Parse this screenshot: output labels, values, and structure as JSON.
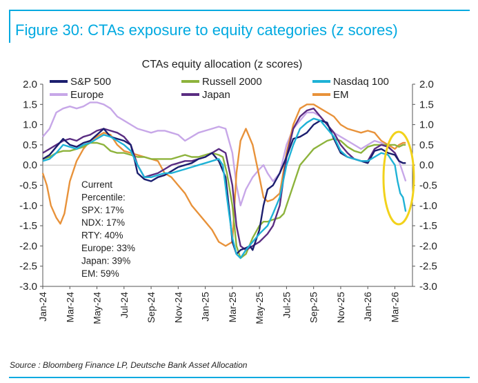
{
  "figure": {
    "title": "Figure 30: CTAs exposure to equity categories (z scores)",
    "source": "Source : Bloomberg Finance LP, Deutsche Bank Asset Allocation",
    "accent_color": "#00a9e0"
  },
  "chart_data": {
    "type": "line",
    "title": "CTAs equity allocation (z scores)",
    "xlabel": "",
    "ylabel": "",
    "ylim": [
      -3.0,
      2.0
    ],
    "y_ticks": [
      "2.0",
      "1.5",
      "1.0",
      "0.5",
      "0.0",
      "-0.5",
      "-1.0",
      "-1.5",
      "-2.0",
      "-2.5",
      "-3.0"
    ],
    "y_tick_values": [
      2.0,
      1.5,
      1.0,
      0.5,
      0.0,
      -0.5,
      -1.0,
      -1.5,
      -2.0,
      -2.5,
      -3.0
    ],
    "x_range": [
      0,
      27.3
    ],
    "x_tick_labels": [
      "Jan-24",
      "Mar-24",
      "May-24",
      "Jul-24",
      "Sep-24",
      "Nov-24",
      "Jan-25",
      "Mar-25",
      "May-25",
      "Jul-25",
      "Sep-25",
      "Nov-25",
      "Jan-26",
      "Mar-26"
    ],
    "x_tick_values": [
      0,
      2,
      4,
      6,
      8,
      10,
      12,
      14,
      16,
      18,
      20,
      22,
      24,
      26
    ],
    "grid": false,
    "legend": [
      "S&P 500",
      "Russell 2000",
      "Nasdaq 100",
      "Europe",
      "Japan",
      "EM"
    ],
    "annotation": {
      "lines": [
        "Current",
        "Percentile:",
        "SPX: 17%",
        "NDX: 17%",
        "RTY: 40%",
        "Europe: 33%",
        "Japan: 39%",
        "EM: 59%"
      ],
      "highlight": "circle around latest readings",
      "highlight_color": "#f2d21b"
    },
    "series": [
      {
        "name": "S&P 500",
        "color": "#1b1e6e",
        "x": [
          0,
          0.5,
          1,
          1.5,
          2,
          2.5,
          3,
          3.5,
          4,
          4.5,
          5,
          5.5,
          6,
          6.5,
          6.8,
          7,
          7.5,
          8,
          8.5,
          9,
          9.5,
          10,
          10.5,
          11,
          11.5,
          12,
          12.5,
          13,
          13.5,
          13.8,
          14,
          14.3,
          14.6,
          15,
          15.3,
          15.5,
          16,
          16.3,
          16.6,
          17,
          17.5,
          18,
          18.5,
          19,
          19.5,
          20,
          20.5,
          21,
          21.5,
          22,
          22.5,
          23,
          23.5,
          24,
          24.5,
          25,
          25.5,
          26,
          26.3,
          26.6,
          26.8
        ],
        "y": [
          0.15,
          0.25,
          0.45,
          0.65,
          0.5,
          0.45,
          0.55,
          0.6,
          0.75,
          0.9,
          0.7,
          0.65,
          0.6,
          0.5,
          0.1,
          -0.2,
          -0.35,
          -0.4,
          -0.3,
          -0.25,
          -0.15,
          -0.05,
          0.0,
          0.05,
          0.15,
          0.2,
          0.3,
          0.1,
          -0.3,
          -1.2,
          -1.9,
          -2.2,
          -2.1,
          -2.05,
          -2.0,
          -2.1,
          -1.6,
          -1.0,
          -0.6,
          -0.5,
          -0.2,
          0.2,
          0.65,
          0.7,
          0.8,
          1.0,
          1.1,
          1.05,
          0.65,
          0.3,
          0.2,
          0.15,
          0.1,
          0.05,
          0.35,
          0.4,
          0.3,
          0.25,
          0.1,
          0.05,
          0.05
        ]
      },
      {
        "name": "Russell 2000",
        "color": "#8db33c",
        "x": [
          0,
          0.5,
          1,
          1.5,
          2,
          2.5,
          3,
          3.5,
          4,
          4.5,
          5,
          5.5,
          6,
          6.5,
          7,
          7.5,
          8,
          8.5,
          9,
          9.5,
          10,
          10.5,
          11,
          11.5,
          12,
          12.5,
          13,
          13.3,
          13.6,
          14,
          14.3,
          14.6,
          15,
          15.5,
          16,
          16.3,
          16.6,
          17,
          17.5,
          17.8,
          18,
          18.5,
          19,
          19.5,
          20,
          20.5,
          21,
          21.5,
          22,
          22.5,
          23,
          23.5,
          24,
          24.5,
          25,
          25.5,
          26,
          26.3,
          26.6,
          26.8
        ],
        "y": [
          0.15,
          0.2,
          0.3,
          0.35,
          0.35,
          0.4,
          0.45,
          0.55,
          0.55,
          0.5,
          0.35,
          0.3,
          0.3,
          0.25,
          0.2,
          0.2,
          0.15,
          0.15,
          0.15,
          0.15,
          0.2,
          0.25,
          0.2,
          0.2,
          0.25,
          0.3,
          0.25,
          0.2,
          -0.2,
          -1.0,
          -2.0,
          -2.3,
          -2.2,
          -1.8,
          -1.5,
          -1.4,
          -1.4,
          -1.35,
          -1.3,
          -1.2,
          -1.0,
          -0.5,
          0.0,
          0.2,
          0.4,
          0.5,
          0.6,
          0.65,
          0.6,
          0.45,
          0.35,
          0.3,
          0.45,
          0.5,
          0.5,
          0.5,
          0.5,
          0.45,
          0.5,
          0.5
        ]
      },
      {
        "name": "Nasdaq 100",
        "color": "#1fb2d6",
        "x": [
          0,
          0.5,
          1,
          1.5,
          2,
          2.5,
          3,
          3.5,
          4,
          4.5,
          5,
          5.5,
          6,
          6.5,
          7,
          7.5,
          8,
          8.5,
          9,
          9.5,
          10,
          10.5,
          11,
          11.5,
          12,
          12.5,
          13,
          13.3,
          13.6,
          14,
          14.3,
          14.6,
          15,
          15.5,
          16,
          16.3,
          16.6,
          17,
          17.5,
          18,
          18.5,
          19,
          19.5,
          20,
          20.5,
          21,
          21.5,
          22,
          22.5,
          23,
          23.5,
          24,
          24.5,
          25,
          25.5,
          25.8,
          26,
          26.2,
          26.4,
          26.6,
          26.8
        ],
        "y": [
          0.1,
          0.15,
          0.3,
          0.5,
          0.45,
          0.4,
          0.5,
          0.55,
          0.65,
          0.75,
          0.7,
          0.6,
          0.5,
          0.35,
          0.0,
          -0.3,
          -0.3,
          -0.25,
          -0.2,
          -0.2,
          -0.15,
          -0.1,
          -0.05,
          0.0,
          0.05,
          0.1,
          0.15,
          0.0,
          -0.8,
          -1.8,
          -2.2,
          -2.3,
          -2.1,
          -1.9,
          -1.7,
          -1.6,
          -1.5,
          -1.2,
          -0.8,
          0.0,
          0.5,
          0.9,
          1.05,
          1.15,
          1.1,
          0.9,
          0.7,
          0.35,
          0.2,
          0.15,
          0.1,
          0.1,
          0.2,
          0.3,
          0.25,
          0.1,
          0.0,
          -0.4,
          -0.7,
          -0.8,
          -1.15
        ]
      },
      {
        "name": "Europe",
        "color": "#c7a7e8",
        "x": [
          0,
          0.5,
          1,
          1.5,
          2,
          2.5,
          3,
          3.5,
          4,
          4.5,
          5,
          5.5,
          6,
          6.5,
          7,
          7.5,
          8,
          8.5,
          9,
          9.5,
          10,
          10.5,
          11,
          11.5,
          12,
          12.5,
          13,
          13.5,
          14,
          14.3,
          14.6,
          15,
          15.5,
          16,
          16.3,
          16.6,
          17,
          17.5,
          18,
          18.5,
          19,
          19.5,
          20,
          20.5,
          21,
          21.5,
          22,
          22.5,
          23,
          23.5,
          24,
          24.5,
          25,
          25.5,
          26,
          26.3,
          26.6,
          26.8
        ],
        "y": [
          0.7,
          0.9,
          1.3,
          1.4,
          1.45,
          1.4,
          1.45,
          1.55,
          1.55,
          1.5,
          1.4,
          1.2,
          1.1,
          1.0,
          0.9,
          0.85,
          0.8,
          0.85,
          0.85,
          0.8,
          0.75,
          0.6,
          0.7,
          0.8,
          0.85,
          0.9,
          0.95,
          0.9,
          0.3,
          -0.5,
          -1.0,
          -0.6,
          -0.3,
          -0.1,
          0.0,
          -0.2,
          -0.4,
          -0.2,
          0.5,
          0.9,
          1.1,
          1.3,
          1.3,
          1.2,
          1.0,
          0.8,
          0.7,
          0.6,
          0.5,
          0.4,
          0.5,
          0.6,
          0.55,
          0.45,
          0.3,
          0.1,
          -0.2,
          -0.4
        ]
      },
      {
        "name": "Japan",
        "color": "#5a2d82",
        "x": [
          0,
          0.5,
          1,
          1.5,
          2,
          2.5,
          3,
          3.5,
          4,
          4.5,
          5,
          5.5,
          6,
          6.5,
          7,
          7.5,
          8,
          8.5,
          9,
          9.5,
          10,
          10.5,
          11,
          11.5,
          12,
          12.5,
          13,
          13.5,
          14,
          14.3,
          14.6,
          15,
          15.5,
          16,
          16.3,
          16.6,
          17,
          17.5,
          18,
          18.5,
          19,
          19.5,
          20,
          20.5,
          21,
          21.5,
          22,
          22.5,
          23,
          23.5,
          24,
          24.5,
          25,
          25.5,
          26,
          26.3,
          26.6,
          26.8
        ],
        "y": [
          0.3,
          0.4,
          0.5,
          0.6,
          0.65,
          0.6,
          0.7,
          0.75,
          0.85,
          0.9,
          0.85,
          0.8,
          0.7,
          0.5,
          0.0,
          -0.3,
          -0.25,
          -0.2,
          -0.1,
          0.0,
          0.05,
          0.1,
          0.1,
          0.15,
          0.2,
          0.3,
          0.4,
          0.3,
          -0.5,
          -1.5,
          -2.0,
          -2.1,
          -2.0,
          -1.9,
          -1.8,
          -1.7,
          -1.5,
          -1.0,
          0.2,
          0.9,
          1.2,
          1.35,
          1.4,
          1.2,
          1.0,
          0.8,
          0.5,
          0.3,
          0.15,
          0.1,
          0.1,
          0.4,
          0.5,
          0.45,
          0.3,
          0.1,
          0.05,
          0.05
        ]
      },
      {
        "name": "EM",
        "color": "#e8923a",
        "x": [
          0,
          0.3,
          0.6,
          1,
          1.3,
          1.6,
          2,
          2.5,
          3,
          3.5,
          4,
          4.5,
          5,
          5.5,
          6,
          6.5,
          7,
          7.5,
          8,
          8.5,
          9,
          9.5,
          10,
          10.5,
          11,
          11.5,
          12,
          12.5,
          13,
          13.5,
          14,
          14.3,
          14.6,
          15,
          15.5,
          16,
          16.3,
          16.6,
          17,
          17.5,
          18,
          18.5,
          19,
          19.5,
          20,
          20.5,
          21,
          21.5,
          22,
          22.5,
          23,
          23.5,
          24,
          24.5,
          25,
          25.5,
          26,
          26.3,
          26.6,
          26.8
        ],
        "y": [
          -0.2,
          -0.5,
          -1.0,
          -1.3,
          -1.45,
          -1.2,
          -0.4,
          0.1,
          0.4,
          0.6,
          0.7,
          0.8,
          0.75,
          0.5,
          0.35,
          0.3,
          0.25,
          0.2,
          0.15,
          0.1,
          -0.2,
          -0.3,
          -0.5,
          -0.7,
          -1.0,
          -1.2,
          -1.4,
          -1.6,
          -1.9,
          -2.0,
          -1.9,
          -0.2,
          0.6,
          0.9,
          0.5,
          -0.3,
          -0.8,
          -0.9,
          -0.85,
          -0.7,
          0.3,
          1.0,
          1.4,
          1.5,
          1.5,
          1.4,
          1.3,
          1.2,
          1.0,
          0.9,
          0.85,
          0.8,
          0.85,
          0.8,
          0.6,
          0.5,
          0.4,
          0.5,
          0.55,
          0.55
        ]
      }
    ]
  }
}
